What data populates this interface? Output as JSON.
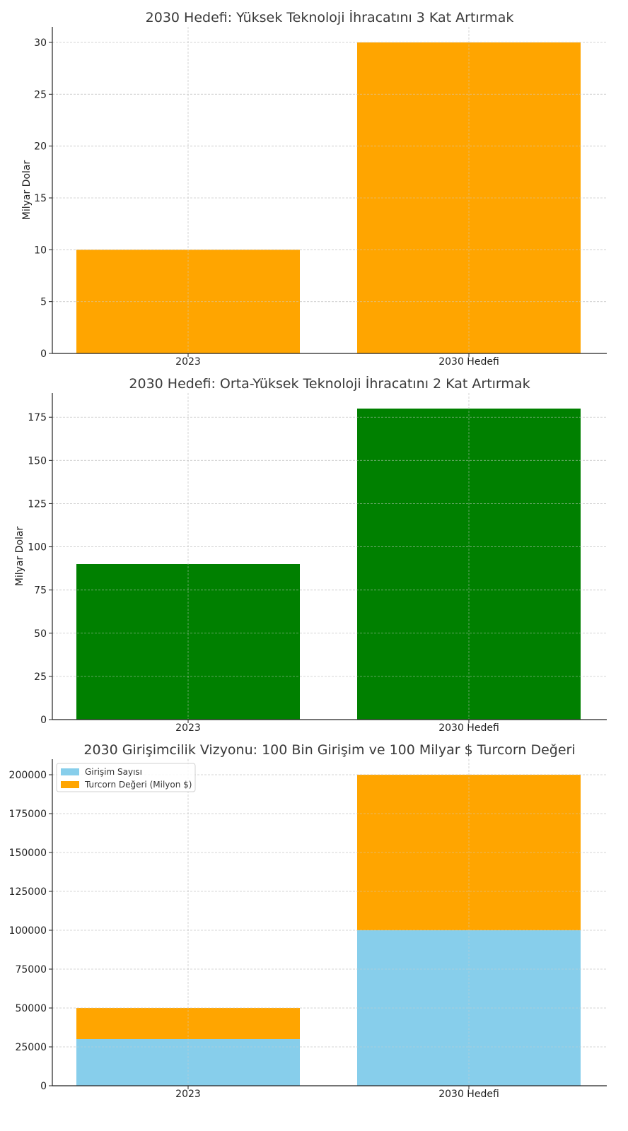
{
  "chart_data": [
    {
      "type": "bar",
      "title": "2030 Hedefi: Yüksek Teknoloji İhracatını 3 Kat Artırmak",
      "xlabel": "",
      "ylabel": "Milyar Dolar",
      "categories": [
        "2023",
        "2030 Hedefi"
      ],
      "values": [
        10,
        30
      ],
      "ylim": [
        0,
        31.5
      ],
      "yticks": [
        0,
        5,
        10,
        15,
        20,
        25,
        30
      ],
      "color": "#FFA500",
      "grid": true
    },
    {
      "type": "bar",
      "title": "2030 Hedefi: Orta-Yüksek Teknoloji İhracatını 2 Kat Artırmak",
      "xlabel": "",
      "ylabel": "Milyar Dolar",
      "categories": [
        "2023",
        "2030 Hedefi"
      ],
      "values": [
        90,
        180
      ],
      "ylim": [
        0,
        189
      ],
      "yticks": [
        0,
        25,
        50,
        75,
        100,
        125,
        150,
        175
      ],
      "color": "#008000",
      "grid": true
    },
    {
      "type": "bar",
      "stacked": true,
      "title": "2030 Girişimcilik Vizyonu: 100 Bin Girişim ve 100 Milyar $ Turcorn Değeri",
      "xlabel": "",
      "ylabel": "",
      "categories": [
        "2023",
        "2030 Hedefi"
      ],
      "series": [
        {
          "name": "Girişim Sayısı",
          "values": [
            30000,
            100000
          ],
          "color": "#87CEEB"
        },
        {
          "name": "Turcorn Değeri (Milyon $)",
          "values": [
            20000,
            100000
          ],
          "color": "#FFA500"
        }
      ],
      "ylim": [
        0,
        210000
      ],
      "yticks": [
        0,
        25000,
        50000,
        75000,
        100000,
        125000,
        150000,
        175000,
        200000
      ],
      "legend": "top-left",
      "grid": true
    }
  ]
}
